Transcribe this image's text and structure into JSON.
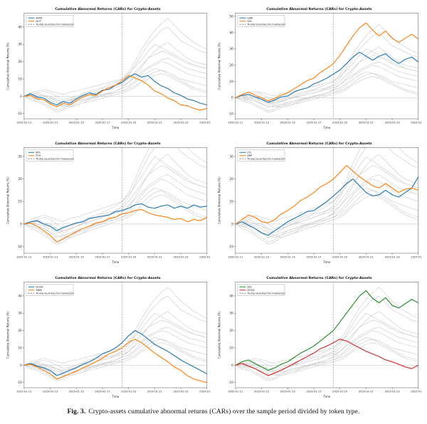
{
  "figure": {
    "caption_label": "Fig. 3.",
    "caption_text": "Crypto-assets cumulative abnormal returns (CARs) over the sample period divided by token type."
  },
  "chart_data": {
    "type": "line",
    "title": "Cumulative Abnormal Returns (CARs) for Crypto-Assets",
    "xlabel": "Time",
    "ylabel": "Cumulative Abnormal Returns (%)",
    "x_range_days": [
      0,
      14
    ],
    "x_tick_days": [
      0,
      2,
      4,
      6,
      8,
      10,
      12,
      14
    ],
    "x_tick_labels": [
      "2025-01-11",
      "2025-01-13",
      "2025-01-15",
      "2025-01-17",
      "2025-01-19",
      "2025-01-21",
      "2025-01-23",
      "2025-01-25"
    ],
    "event_line": {
      "x_day": 7.5,
      "label": "Trump launches his memecoin"
    },
    "background_series": {
      "color": "#c9c9c9",
      "series": [
        [
          0,
          1,
          2,
          0.5,
          0,
          -2,
          -4,
          -2.5,
          -1,
          0.5,
          2,
          3,
          4.5,
          5,
          6,
          8,
          12,
          18,
          24,
          30,
          34,
          38,
          40,
          36,
          32,
          30,
          28,
          26,
          25
        ],
        [
          0,
          -1,
          -2,
          -4,
          -6,
          -8,
          -7,
          -5,
          -4,
          -3,
          -1.5,
          0,
          1,
          2,
          3,
          4.5,
          6,
          9,
          13,
          16,
          18,
          20,
          19,
          17,
          15,
          13,
          12,
          11,
          10
        ],
        [
          0,
          2,
          3,
          4,
          3,
          2,
          1,
          2.5,
          3,
          4,
          5,
          6,
          7,
          8,
          9,
          10,
          13,
          17,
          21,
          26,
          30,
          28,
          26,
          24,
          22,
          20,
          18,
          17,
          16
        ],
        [
          0,
          0,
          -1,
          -2,
          -3.5,
          -5,
          -6,
          -5,
          -3,
          -2,
          -1,
          0,
          1,
          1.5,
          2,
          3,
          5,
          8,
          11,
          14,
          16,
          15,
          13,
          11,
          9,
          7,
          5,
          4,
          3
        ],
        [
          0,
          1,
          1,
          0,
          -1,
          -3,
          -5,
          -6,
          -5,
          -4,
          -2,
          -1,
          0.5,
          2,
          3,
          5,
          8,
          12,
          17,
          22,
          26,
          29,
          31,
          28,
          25,
          22,
          20,
          19,
          18
        ],
        [
          0,
          -2,
          -3,
          -5,
          -7,
          -9,
          -8,
          -6,
          -5,
          -4,
          -3,
          -2,
          -1,
          0,
          1,
          2,
          3,
          5,
          8,
          10,
          12,
          13,
          12,
          10,
          8,
          6,
          4,
          3,
          2
        ],
        [
          0,
          1,
          2,
          3,
          2,
          0,
          -2,
          -1,
          0,
          1.5,
          3,
          4,
          5,
          6.5,
          8,
          10,
          14,
          20,
          27,
          33,
          38,
          42,
          45,
          41,
          37,
          34,
          31,
          29,
          27
        ],
        [
          0,
          0,
          1,
          0,
          -1,
          -2,
          -3,
          -2,
          -1,
          0.5,
          1,
          2,
          3,
          4,
          5,
          6,
          8,
          11,
          14,
          17,
          19,
          21,
          22,
          20,
          18,
          16,
          15,
          14,
          13
        ],
        [
          0,
          1,
          0,
          -1,
          -2,
          -4,
          -3,
          -2,
          -1,
          0,
          1,
          2,
          3,
          4,
          6,
          7,
          10,
          14,
          18,
          22,
          24,
          26,
          25,
          23,
          21,
          19,
          18,
          17,
          16
        ],
        [
          0,
          -1,
          -1,
          -2,
          -4,
          -6,
          -5,
          -4,
          -3,
          -2,
          -1,
          -0.5,
          0,
          1,
          2,
          3,
          4,
          6,
          9,
          12,
          14,
          15,
          14,
          12,
          10,
          9,
          8,
          7,
          6
        ]
      ]
    },
    "subplots": [
      {
        "ylim": [
          -13,
          48
        ],
        "yticks": [
          -10,
          0,
          10,
          20,
          30,
          40
        ],
        "series": [
          {
            "name": "AVAX",
            "color": "#1f77b4",
            "values": [
              0,
              1.5,
              -0.5,
              -1,
              -3.5,
              -5,
              -3,
              -4,
              -1.5,
              0.5,
              2,
              1,
              3.5,
              4,
              6.5,
              8,
              11,
              13,
              11,
              12,
              8.5,
              6,
              4.5,
              2,
              0.5,
              -1.5,
              -2.5,
              -4,
              -5
            ]
          },
          {
            "name": "DOT",
            "color": "#ff7f0e",
            "values": [
              0,
              0.5,
              -1.5,
              -2,
              -4.5,
              -6,
              -4,
              -5,
              -2.5,
              -0.5,
              1,
              0.5,
              3,
              5,
              6.5,
              9,
              12,
              10.5,
              9,
              6.5,
              3,
              1.5,
              -1,
              -2.5,
              -5,
              -5.5,
              -7,
              -8,
              -7
            ]
          }
        ]
      },
      {
        "ylim": [
          -13,
          52
        ],
        "yticks": [
          -10,
          0,
          10,
          20,
          30,
          40,
          50
        ],
        "series": [
          {
            "name": "LINK",
            "color": "#1f77b4",
            "values": [
              0,
              1.5,
              2,
              0.5,
              -1,
              -3,
              -1.5,
              0.5,
              1,
              3.5,
              5,
              6,
              8.5,
              10,
              12,
              14.5,
              17,
              21,
              25,
              28,
              25.5,
              23,
              25.5,
              27,
              23.5,
              21,
              23.5,
              25,
              22
            ]
          },
          {
            "name": "SOL",
            "color": "#ff7f0e",
            "values": [
              0,
              2,
              3.5,
              1.5,
              0,
              -2,
              -0.5,
              1.5,
              3,
              5.5,
              8,
              10.5,
              12,
              15.5,
              18,
              21,
              26,
              32,
              38,
              43,
              46,
              41.5,
              38,
              41,
              36.5,
              34,
              36.5,
              39,
              36
            ]
          }
        ]
      },
      {
        "ylim": [
          -13,
          34
        ],
        "yticks": [
          -10,
          0,
          10,
          20,
          30
        ],
        "series": [
          {
            "name": "BTC",
            "color": "#1f77b4",
            "values": [
              0,
              1,
              1.5,
              0,
              -1,
              -3,
              -1.5,
              -0.5,
              0.5,
              1,
              2.5,
              3,
              3.5,
              4,
              5.5,
              6,
              7,
              8.5,
              9,
              7.5,
              7,
              8,
              8.5,
              7,
              8,
              7,
              8.5,
              7.5,
              8
            ]
          },
          {
            "name": "ETH",
            "color": "#ff7f0e",
            "values": [
              0,
              0.5,
              -1,
              -3,
              -5,
              -8,
              -6.5,
              -5,
              -3.5,
              -2,
              -1,
              0.5,
              1,
              2.5,
              3,
              4.5,
              5,
              6,
              6.5,
              5,
              4,
              3.5,
              3,
              2,
              2.5,
              1,
              2,
              1.5,
              3
            ]
          }
        ]
      },
      {
        "ylim": [
          -13,
          34
        ],
        "yticks": [
          -10,
          0,
          10,
          20,
          30
        ],
        "series": [
          {
            "name": "LTC",
            "color": "#1f77b4",
            "values": [
              0,
              1,
              -0.5,
              -2,
              -4,
              -5,
              -3,
              -1,
              1,
              2.5,
              4,
              5.5,
              6,
              8,
              10,
              12.5,
              15,
              18,
              20,
              17,
              14,
              12.5,
              13,
              15,
              13,
              12,
              14,
              16,
              21
            ]
          },
          {
            "name": "XRP",
            "color": "#ff7f0e",
            "values": [
              0,
              2,
              4,
              3,
              1,
              0.5,
              2,
              4.5,
              6,
              8,
              10.5,
              12,
              14,
              16.5,
              18,
              20,
              23,
              26,
              23.5,
              21,
              19,
              17,
              16,
              18,
              16,
              14,
              15.5,
              16,
              15
            ]
          }
        ]
      },
      {
        "ylim": [
          -13,
          48
        ],
        "yticks": [
          -10,
          0,
          10,
          20,
          30,
          40
        ],
        "series": [
          {
            "name": "DOGE",
            "color": "#1f77b4",
            "values": [
              0,
              1,
              -0.5,
              -1.5,
              -3,
              -6,
              -4.5,
              -3,
              -1.5,
              0.5,
              2,
              4,
              6.5,
              8,
              10,
              13,
              17,
              20,
              18,
              15,
              12,
              10,
              8,
              5.5,
              3,
              1,
              -1,
              -3,
              -5
            ]
          },
          {
            "name": "SHIB",
            "color": "#ff7f0e",
            "values": [
              0,
              0.5,
              -1,
              -3,
              -5,
              -8,
              -6.5,
              -5,
              -3.5,
              -1.5,
              0,
              2,
              4,
              6.5,
              8,
              10,
              13,
              15,
              13,
              10,
              7,
              4.5,
              2,
              -1,
              -3,
              -6,
              -8,
              -9,
              -10
            ]
          }
        ]
      },
      {
        "ylim": [
          -13,
          48
        ],
        "yticks": [
          -10,
          0,
          10,
          20,
          30,
          40
        ],
        "series": [
          {
            "name": "SOL",
            "color": "#228b22",
            "values": [
              0,
              2,
              3,
              1,
              -1,
              -3,
              -1.5,
              0.5,
              2,
              4.5,
              7,
              9,
              11,
              14,
              17,
              20,
              25,
              30,
              35,
              40,
              43,
              38.5,
              36,
              39,
              34.5,
              33,
              35.5,
              38,
              36
            ]
          },
          {
            "name": "DOGE",
            "color": "#d62728",
            "values": [
              0,
              1,
              -0.5,
              -2,
              -4,
              -6,
              -4.5,
              -3,
              -1,
              1,
              3,
              5,
              7,
              9.5,
              11,
              13,
              15,
              14,
              12,
              10,
              8,
              6.5,
              5,
              3,
              2,
              0.5,
              -1,
              -2,
              0
            ]
          }
        ]
      }
    ]
  }
}
